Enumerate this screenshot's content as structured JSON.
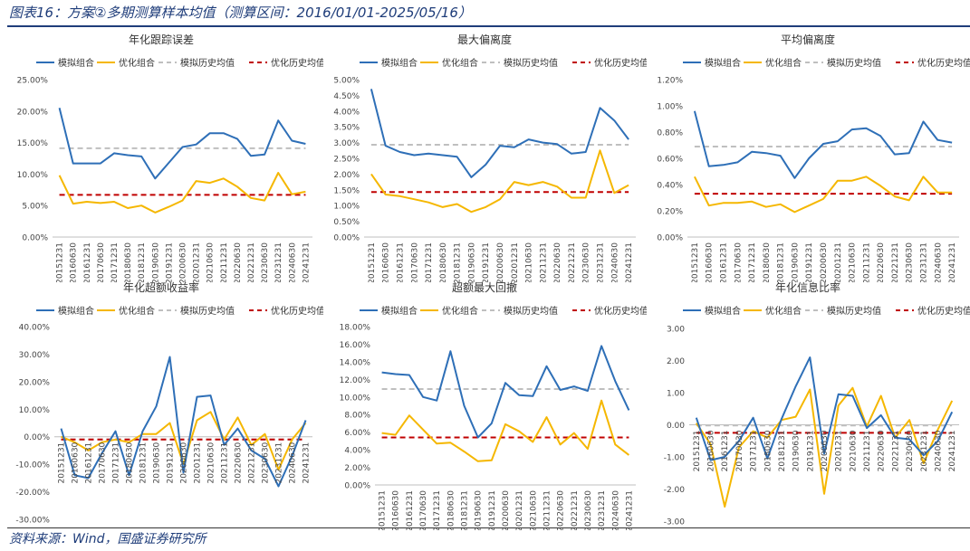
{
  "figure_title": "图表16：方案②多期测算样本均值（测算区间：2016/01/01-2025/05/16）",
  "source": "资料来源：Wind，国盛证券研究所",
  "colors": {
    "sim": "#2E6FB7",
    "opt": "#F5B700",
    "sim_hist": "#BFBFBF",
    "opt_hist": "#C00000",
    "title": "#1f3d7a"
  },
  "chart_data": [
    {
      "type": "line",
      "title": "年化跟踪误差",
      "legend": [
        "模拟组合",
        "优化组合",
        "模拟历史均值",
        "优化历史均值"
      ],
      "categories": [
        "20151231",
        "20160630",
        "20161231",
        "20170630",
        "20171231",
        "20180630",
        "20181231",
        "20190630",
        "20191231",
        "20200630",
        "20201231",
        "20210630",
        "20211231",
        "20220630",
        "20221231",
        "20230630",
        "20231231",
        "20240630",
        "20241231"
      ],
      "series": [
        {
          "name": "模拟组合",
          "values": [
            20.5,
            11.7,
            11.7,
            11.7,
            13.3,
            13.0,
            12.8,
            9.3,
            11.8,
            14.3,
            14.7,
            16.5,
            16.5,
            15.6,
            12.9,
            13.1,
            18.5,
            15.3,
            14.8
          ]
        },
        {
          "name": "优化组合",
          "values": [
            9.8,
            5.3,
            5.6,
            5.4,
            5.6,
            4.6,
            5.0,
            3.9,
            4.8,
            5.8,
            8.9,
            8.6,
            9.3,
            8.0,
            6.2,
            5.8,
            10.2,
            6.8,
            7.2
          ]
        }
      ],
      "sim_avg": 14.1,
      "opt_avg": 6.7,
      "yticks": [
        0,
        5,
        10,
        15,
        20,
        25
      ],
      "ytick_labels": [
        "0.00%",
        "5.00%",
        "10.00%",
        "15.00%",
        "20.00%",
        "25.00%"
      ],
      "ylim": [
        0,
        25
      ]
    },
    {
      "type": "line",
      "title": "最大偏离度",
      "legend": [
        "模拟组合",
        "优化组合",
        "模拟历史均值",
        "优化历史均值"
      ],
      "categories": [
        "20151231",
        "20160630",
        "20161231",
        "20170630",
        "20171231",
        "20180630",
        "20181231",
        "20190630",
        "20191231",
        "20200630",
        "20201231",
        "20210630",
        "20211231",
        "20220630",
        "20221231",
        "20230630",
        "20231231",
        "20240630",
        "20241231"
      ],
      "series": [
        {
          "name": "模拟组合",
          "values": [
            4.7,
            2.9,
            2.7,
            2.6,
            2.65,
            2.6,
            2.55,
            1.9,
            2.3,
            2.9,
            2.85,
            3.1,
            3.0,
            2.95,
            2.65,
            2.7,
            4.1,
            3.7,
            3.1
          ]
        },
        {
          "name": "优化组合",
          "values": [
            2.0,
            1.35,
            1.3,
            1.2,
            1.1,
            0.95,
            1.05,
            0.8,
            0.95,
            1.2,
            1.75,
            1.65,
            1.75,
            1.6,
            1.25,
            1.25,
            2.75,
            1.4,
            1.65
          ]
        }
      ],
      "sim_avg": 2.93,
      "opt_avg": 1.43,
      "yticks": [
        0,
        0.5,
        1,
        1.5,
        2,
        2.5,
        3,
        3.5,
        4,
        4.5,
        5
      ],
      "ytick_labels": [
        "0.00%",
        "0.50%",
        "1.00%",
        "1.50%",
        "2.00%",
        "2.50%",
        "3.00%",
        "3.50%",
        "4.00%",
        "4.50%",
        "5.00%"
      ],
      "ylim": [
        0,
        5
      ]
    },
    {
      "type": "line",
      "title": "平均偏离度",
      "legend": [
        "模拟组合",
        "优化组合",
        "模拟历史均值",
        "优化历史均值"
      ],
      "categories": [
        "20151231",
        "20160630",
        "20161231",
        "20170630",
        "20171231",
        "20180630",
        "20181231",
        "20190630",
        "20191231",
        "20200630",
        "20201231",
        "20210630",
        "20211231",
        "20220630",
        "20221231",
        "20230630",
        "20231231",
        "20240630",
        "20241231"
      ],
      "series": [
        {
          "name": "模拟组合",
          "values": [
            0.96,
            0.54,
            0.55,
            0.57,
            0.65,
            0.64,
            0.62,
            0.45,
            0.6,
            0.71,
            0.73,
            0.82,
            0.83,
            0.77,
            0.63,
            0.64,
            0.88,
            0.74,
            0.72
          ]
        },
        {
          "name": "优化组合",
          "values": [
            0.46,
            0.24,
            0.26,
            0.26,
            0.27,
            0.23,
            0.25,
            0.19,
            0.24,
            0.29,
            0.43,
            0.43,
            0.46,
            0.39,
            0.31,
            0.28,
            0.46,
            0.34,
            0.34
          ]
        }
      ],
      "sim_avg": 0.69,
      "opt_avg": 0.33,
      "yticks": [
        0,
        0.2,
        0.4,
        0.6,
        0.8,
        1.0,
        1.2
      ],
      "ytick_labels": [
        "0.00%",
        "0.20%",
        "0.40%",
        "0.60%",
        "0.80%",
        "1.00%",
        "1.20%"
      ],
      "ylim": [
        0,
        1.2
      ]
    },
    {
      "type": "line",
      "title": "年化超额收益率",
      "legend": [
        "模拟组合",
        "优化组合",
        "模拟历史均值",
        "优化历史均值"
      ],
      "categories": [
        "20151231",
        "20160630",
        "20161231",
        "20170630",
        "20171231",
        "20180630",
        "20181231",
        "20190630",
        "20191231",
        "20200630",
        "20201231",
        "20210630",
        "20211231",
        "20220630",
        "20221231",
        "20230630",
        "20231231",
        "20240630",
        "20241231"
      ],
      "series": [
        {
          "name": "模拟组合",
          "values": [
            3,
            -14,
            -15,
            -6,
            2,
            -14,
            2,
            11,
            29,
            -13,
            14.5,
            15,
            -3,
            3,
            -5,
            -8,
            -18,
            -7,
            6
          ]
        },
        {
          "name": "优化组合",
          "values": [
            0,
            -2,
            -5,
            -2,
            -1,
            -2,
            1,
            1,
            5,
            -10,
            6,
            9,
            -1,
            7,
            -3,
            1,
            -12,
            -1,
            5
          ]
        }
      ],
      "sim_avg": -1.0,
      "opt_avg": -1.0,
      "yticks": [
        -30,
        -20,
        -10,
        0,
        10,
        20,
        30,
        40
      ],
      "ytick_labels": [
        "-30.00%",
        "-20.00%",
        "-10.00%",
        "0.00%",
        "10.00%",
        "20.00%",
        "30.00%",
        "40.00%"
      ],
      "ylim": [
        -30,
        40
      ]
    },
    {
      "type": "line",
      "title": "超额最大回撤",
      "legend": [
        "模拟组合",
        "优化组合",
        "模拟历史均值",
        "优化历史均值"
      ],
      "categories": [
        "20151231",
        "20160630",
        "20161231",
        "20170630",
        "20171231",
        "20180630",
        "20181231",
        "20190630",
        "20191231",
        "20200630",
        "20201231",
        "20210630",
        "20211231",
        "20220630",
        "20221231",
        "20230630",
        "20231231",
        "20240630",
        "20241231"
      ],
      "series": [
        {
          "name": "模拟组合",
          "values": [
            12.8,
            12.6,
            12.5,
            10.0,
            9.6,
            15.2,
            9.0,
            5.4,
            7.0,
            11.6,
            10.2,
            10.1,
            13.5,
            10.8,
            11.2,
            10.7,
            15.8,
            11.8,
            8.5
          ]
        },
        {
          "name": "优化组合",
          "values": [
            5.9,
            5.7,
            7.9,
            6.3,
            4.7,
            4.8,
            3.8,
            2.7,
            2.8,
            6.9,
            6.1,
            4.9,
            7.7,
            4.6,
            5.9,
            4.1,
            9.6,
            4.6,
            3.4
          ]
        }
      ],
      "sim_avg": 10.9,
      "opt_avg": 5.4,
      "yticks": [
        0,
        2,
        4,
        6,
        8,
        10,
        12,
        14,
        16,
        18
      ],
      "ytick_labels": [
        "0.00%",
        "2.00%",
        "4.00%",
        "6.00%",
        "8.00%",
        "10.00%",
        "12.00%",
        "14.00%",
        "16.00%",
        "18.00%"
      ],
      "ylim": [
        0,
        18
      ]
    },
    {
      "type": "line",
      "title": "年化信息比率",
      "legend": [
        "模拟组合",
        "优化组合",
        "模拟历史均值",
        "优化历史均值"
      ],
      "categories": [
        "20151231",
        "20160630",
        "20161231",
        "20170630",
        "20171231",
        "20180630",
        "20181231",
        "20190630",
        "20191231",
        "20200630",
        "20201231",
        "20210630",
        "20211231",
        "20220630",
        "20221231",
        "20230630",
        "20231231",
        "20240630",
        "20241231"
      ],
      "series": [
        {
          "name": "模拟组合",
          "values": [
            0.22,
            -1.1,
            -1.0,
            -0.5,
            0.22,
            -1.05,
            0.18,
            1.2,
            2.1,
            -0.9,
            0.95,
            0.9,
            -0.1,
            0.3,
            -0.4,
            -0.45,
            -0.95,
            -0.5,
            0.4
          ]
        },
        {
          "name": "优化组合",
          "values": [
            0.05,
            -0.6,
            -2.55,
            -0.7,
            -0.2,
            -0.4,
            0.15,
            0.25,
            1.1,
            -2.15,
            0.6,
            1.15,
            -0.05,
            0.9,
            -0.4,
            0.15,
            -1.2,
            -0.15,
            0.75
          ]
        }
      ],
      "sim_avg": -0.02,
      "opt_avg": -0.25,
      "yticks": [
        -3,
        -2,
        -1,
        0,
        1,
        2,
        3
      ],
      "ytick_labels": [
        "-3.00",
        "-2.00",
        "-1.00",
        "0.00",
        "1.00",
        "2.00",
        "3.00"
      ],
      "ylim": [
        -3,
        3
      ]
    }
  ]
}
